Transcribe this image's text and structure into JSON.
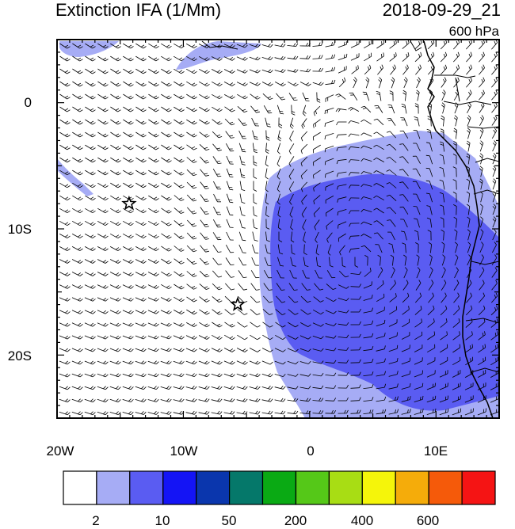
{
  "title": "Extinction IFA (1/Mm)",
  "datetime": "2018-09-29_21",
  "level": "600 hPa",
  "chart_data": {
    "type": "heatmap",
    "title": "Extinction IFA (1/Mm)",
    "x_ticks": [
      "20W",
      "10W",
      "0",
      "10E"
    ],
    "y_ticks": [
      "0",
      "10S",
      "20S"
    ],
    "xlim": [
      -20,
      15
    ],
    "ylim": [
      -25,
      5
    ],
    "colorbar": {
      "labels": [
        "2",
        "10",
        "50",
        "200",
        "400",
        "600"
      ],
      "colors": [
        "#ffffff",
        "#a6acf5",
        "#5a5cf2",
        "#1414f5",
        "#0a36ad",
        "#05786a",
        "#0aaa14",
        "#55c818",
        "#a8dd14",
        "#f5f50a",
        "#f5ac0a",
        "#f55a0a",
        "#f51414"
      ]
    },
    "markers": [
      {
        "type": "star",
        "lon": -14.3,
        "lat": -8
      },
      {
        "type": "star",
        "lon": -5.7,
        "lat": -16
      }
    ]
  },
  "colors": {
    "plume_light": "#a6acf5",
    "plume_medium": "#5a5cf2"
  }
}
